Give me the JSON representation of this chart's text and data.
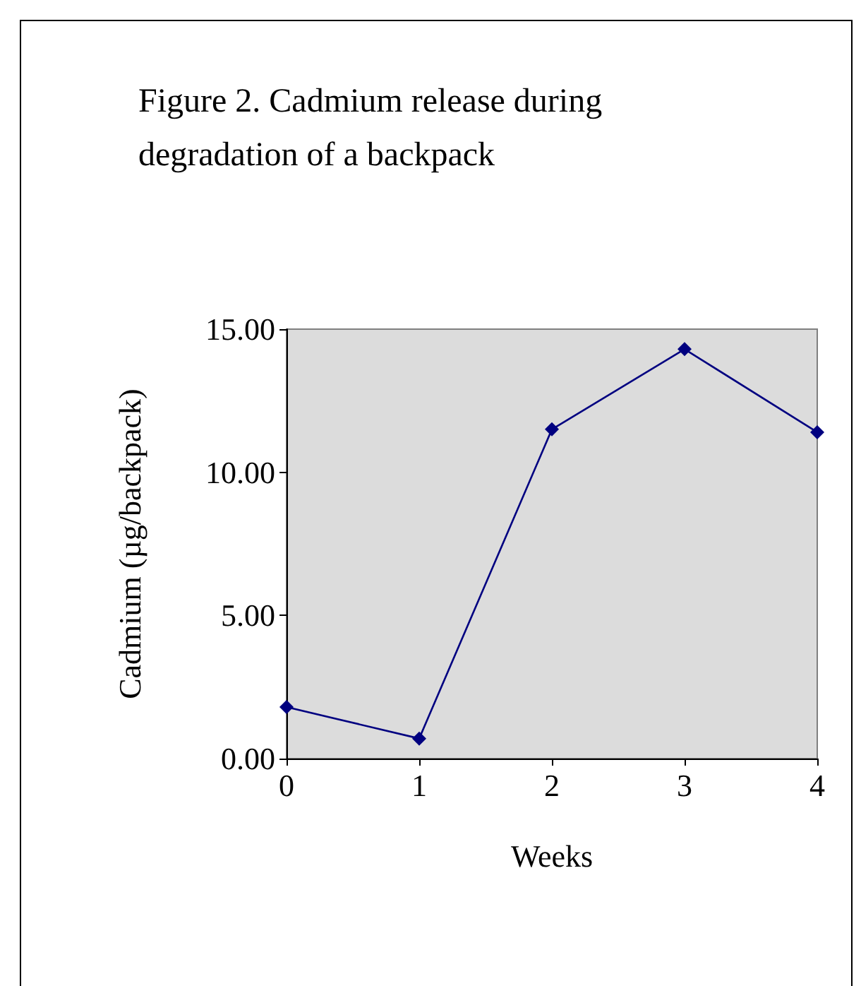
{
  "chart_data": {
    "type": "line",
    "title": "Figure 2. Cadmium release during degradation of a backpack",
    "xlabel": "Weeks",
    "ylabel": "Cadmium (µg/backpack)",
    "x": [
      0,
      1,
      2,
      3,
      4
    ],
    "series": [
      {
        "color": "#000080",
        "values": [
          1.8,
          0.7,
          11.5,
          14.3,
          11.4
        ]
      }
    ],
    "xlim": [
      0,
      4
    ],
    "xticks": [
      0,
      1,
      2,
      3,
      4
    ],
    "ylim": [
      0,
      15
    ],
    "yticks": [
      {
        "value": 0,
        "label": "0.00"
      },
      {
        "value": 5,
        "label": "5.00"
      },
      {
        "value": 10,
        "label": "10.00"
      },
      {
        "value": 15,
        "label": "15.00"
      }
    ],
    "marker": "diamond",
    "line_style": "solid"
  }
}
